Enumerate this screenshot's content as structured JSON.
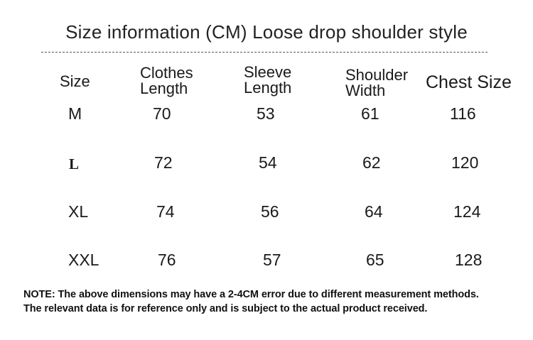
{
  "title": "Size information (CM) Loose drop shoulder style",
  "table": {
    "headers": [
      "Size",
      "Clothes\nLength",
      "Sleeve\nLength",
      "Shoulder\nWidth",
      "Chest Size"
    ],
    "rows": [
      [
        "M",
        "70",
        "53",
        "61",
        "116"
      ],
      [
        "L",
        "72",
        "54",
        "62",
        "120"
      ],
      [
        "XL",
        "74",
        "56",
        "64",
        "124"
      ],
      [
        "XXL",
        "76",
        "57",
        "65",
        "128"
      ]
    ]
  },
  "note": {
    "line1": "NOTE: The above dimensions may have a 2-4CM error due to different measurement methods.",
    "line2": "The relevant data is for reference only and is subject to the actual product received."
  }
}
